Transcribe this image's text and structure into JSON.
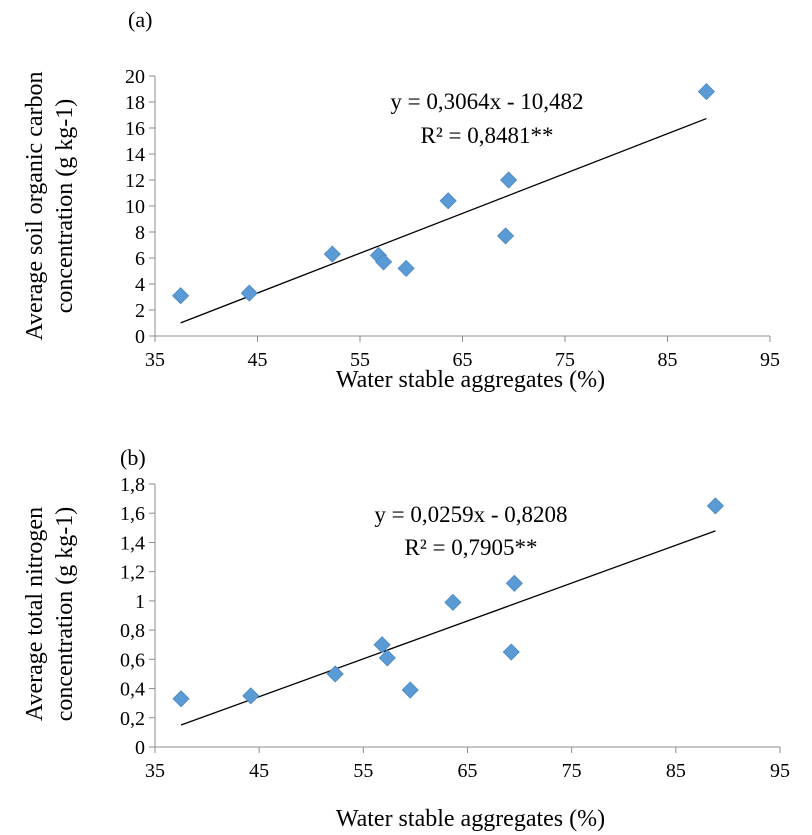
{
  "chart_data": [
    {
      "type": "scatter",
      "panel_label": "(a)",
      "xlabel": "Water stable aggregates (%)",
      "ylabel_lines": [
        "Average soil organic carbon",
        "concentration  (g kg-1)"
      ],
      "xlim": [
        35,
        95
      ],
      "ylim": [
        0,
        20
      ],
      "xticks": [
        35,
        45,
        55,
        65,
        75,
        85,
        95
      ],
      "xtick_labels": [
        "35",
        "45",
        "55",
        "65",
        "75",
        "85",
        "95"
      ],
      "yticks": [
        0,
        2,
        4,
        6,
        8,
        10,
        12,
        14,
        16,
        18,
        20
      ],
      "ytick_labels": [
        "0",
        "2",
        "4",
        "6",
        "8",
        "10",
        "12",
        "14",
        "16",
        "18",
        "20"
      ],
      "points": [
        {
          "x": 37.5,
          "y": 3.1
        },
        {
          "x": 44.2,
          "y": 3.3
        },
        {
          "x": 52.3,
          "y": 6.3
        },
        {
          "x": 56.8,
          "y": 6.2
        },
        {
          "x": 57.3,
          "y": 5.7
        },
        {
          "x": 59.5,
          "y": 5.2
        },
        {
          "x": 63.6,
          "y": 10.4
        },
        {
          "x": 69.2,
          "y": 7.7
        },
        {
          "x": 69.5,
          "y": 12.0
        },
        {
          "x": 88.8,
          "y": 18.8
        }
      ],
      "trendline": {
        "slope": 0.3064,
        "intercept": -10.482,
        "x_range": [
          37.5,
          88.8
        ]
      },
      "equation": "y = 0,3064x - 10,482",
      "r_squared": "R² = 0,8481**",
      "marker_color": "#5B9BD5",
      "grid": false
    },
    {
      "type": "scatter",
      "panel_label": "(b)",
      "xlabel": "Water stable aggregates (%)",
      "ylabel_lines": [
        "Average total nitrogen",
        "concentration (g kg-1)"
      ],
      "xlim": [
        35,
        95
      ],
      "ylim": [
        0,
        1.8
      ],
      "xticks": [
        35,
        45,
        55,
        65,
        75,
        85,
        95
      ],
      "xtick_labels": [
        "35",
        "45",
        "55",
        "65",
        "75",
        "85",
        "95"
      ],
      "yticks": [
        0,
        0.2,
        0.4,
        0.6,
        0.8,
        1.0,
        1.2,
        1.4,
        1.6,
        1.8
      ],
      "ytick_labels": [
        "0",
        "0,2",
        "0,4",
        "0,6",
        "0,8",
        "1",
        "1,2",
        "1,4",
        "1,6",
        "1,8"
      ],
      "points": [
        {
          "x": 37.5,
          "y": 0.33
        },
        {
          "x": 44.2,
          "y": 0.35
        },
        {
          "x": 52.3,
          "y": 0.5
        },
        {
          "x": 56.8,
          "y": 0.7
        },
        {
          "x": 57.3,
          "y": 0.61
        },
        {
          "x": 59.5,
          "y": 0.39
        },
        {
          "x": 63.6,
          "y": 0.99
        },
        {
          "x": 69.2,
          "y": 0.65
        },
        {
          "x": 69.5,
          "y": 1.12
        },
        {
          "x": 88.8,
          "y": 1.65
        }
      ],
      "trendline": {
        "slope": 0.0259,
        "intercept": -0.8208,
        "x_range": [
          37.5,
          88.8
        ]
      },
      "equation": "y = 0,0259x - 0,8208",
      "r_squared": "R² = 0,7905**",
      "marker_color": "#5B9BD5",
      "grid": false
    }
  ]
}
